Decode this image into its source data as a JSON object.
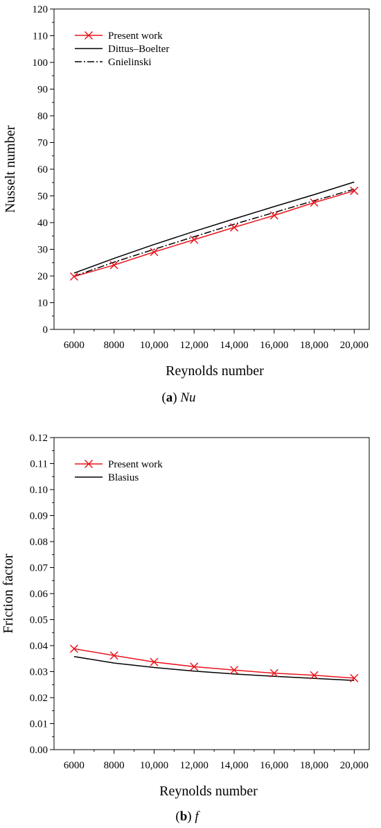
{
  "chart_data": [
    {
      "type": "line",
      "caption_label": "a",
      "caption_text": "Nu",
      "xlabel": "Reynolds number",
      "ylabel": "Nusselt number",
      "xlim": [
        5000,
        20750
      ],
      "ylim": [
        0,
        120
      ],
      "x_ticks": [
        6000,
        8000,
        10000,
        12000,
        14000,
        16000,
        18000,
        20000
      ],
      "x_tick_labels": [
        "6000",
        "8000",
        "10,000",
        "12,000",
        "14,000",
        "16,000",
        "18,000",
        "20,000"
      ],
      "y_ticks": [
        0,
        10,
        20,
        30,
        40,
        50,
        60,
        70,
        80,
        90,
        100,
        110,
        120
      ],
      "y_tick_labels": [
        "0",
        "10",
        "20",
        "30",
        "40",
        "50",
        "60",
        "70",
        "80",
        "90",
        "100",
        "110",
        "120"
      ],
      "grid": false,
      "legend_position": "top-left",
      "series": [
        {
          "name": "Present work",
          "color": "#e8141c",
          "style": "solid-cross",
          "x": [
            6000,
            8000,
            10000,
            12000,
            14000,
            16000,
            18000,
            20000
          ],
          "values": [
            19.8,
            24.1,
            29.0,
            33.6,
            38.2,
            42.7,
            47.5,
            51.9
          ]
        },
        {
          "name": "Dittus–Boelter",
          "color": "#000000",
          "style": "solid",
          "x": [
            6000,
            8000,
            10000,
            12000,
            14000,
            16000,
            18000,
            20000
          ],
          "values": [
            21.1,
            26.6,
            31.8,
            36.7,
            41.4,
            46.0,
            50.5,
            55.2
          ]
        },
        {
          "name": "Gnielinski",
          "color": "#000000",
          "style": "dashdot",
          "x": [
            6000,
            8000,
            10000,
            12000,
            14000,
            16000,
            18000,
            20000
          ],
          "values": [
            19.9,
            25.2,
            30.0,
            34.7,
            39.4,
            43.8,
            48.2,
            52.5
          ]
        }
      ]
    },
    {
      "type": "line",
      "caption_label": "b",
      "caption_text": "f",
      "xlabel": "Reynolds number",
      "ylabel": "Friction factor",
      "xlim": [
        5000,
        20750
      ],
      "ylim": [
        0,
        0.12
      ],
      "x_ticks": [
        6000,
        8000,
        10000,
        12000,
        14000,
        16000,
        18000,
        20000
      ],
      "x_tick_labels": [
        "6000",
        "8000",
        "10,000",
        "12,000",
        "14,000",
        "16,000",
        "18,000",
        "20,000"
      ],
      "y_ticks": [
        0,
        0.01,
        0.02,
        0.03,
        0.04,
        0.05,
        0.06,
        0.07,
        0.08,
        0.09,
        0.1,
        0.11,
        0.12
      ],
      "y_tick_labels": [
        "0.00",
        "0.01",
        "0.02",
        "0.03",
        "0.04",
        "0.05",
        "0.06",
        "0.07",
        "0.08",
        "0.09",
        "0.10",
        "0.11",
        "0.12"
      ],
      "grid": false,
      "legend_position": "top-left",
      "series": [
        {
          "name": "Present work",
          "color": "#e8141c",
          "style": "solid-cross",
          "x": [
            6000,
            8000,
            10000,
            12000,
            14000,
            16000,
            18000,
            20000
          ],
          "values": [
            0.0388,
            0.0362,
            0.0337,
            0.0319,
            0.0306,
            0.0294,
            0.0286,
            0.0275
          ]
        },
        {
          "name": "Blasius",
          "color": "#000000",
          "style": "solid",
          "x": [
            6000,
            8000,
            10000,
            12000,
            14000,
            16000,
            18000,
            20000
          ],
          "values": [
            0.0358,
            0.0333,
            0.0316,
            0.0302,
            0.0291,
            0.0282,
            0.0274,
            0.0266
          ]
        }
      ]
    }
  ]
}
